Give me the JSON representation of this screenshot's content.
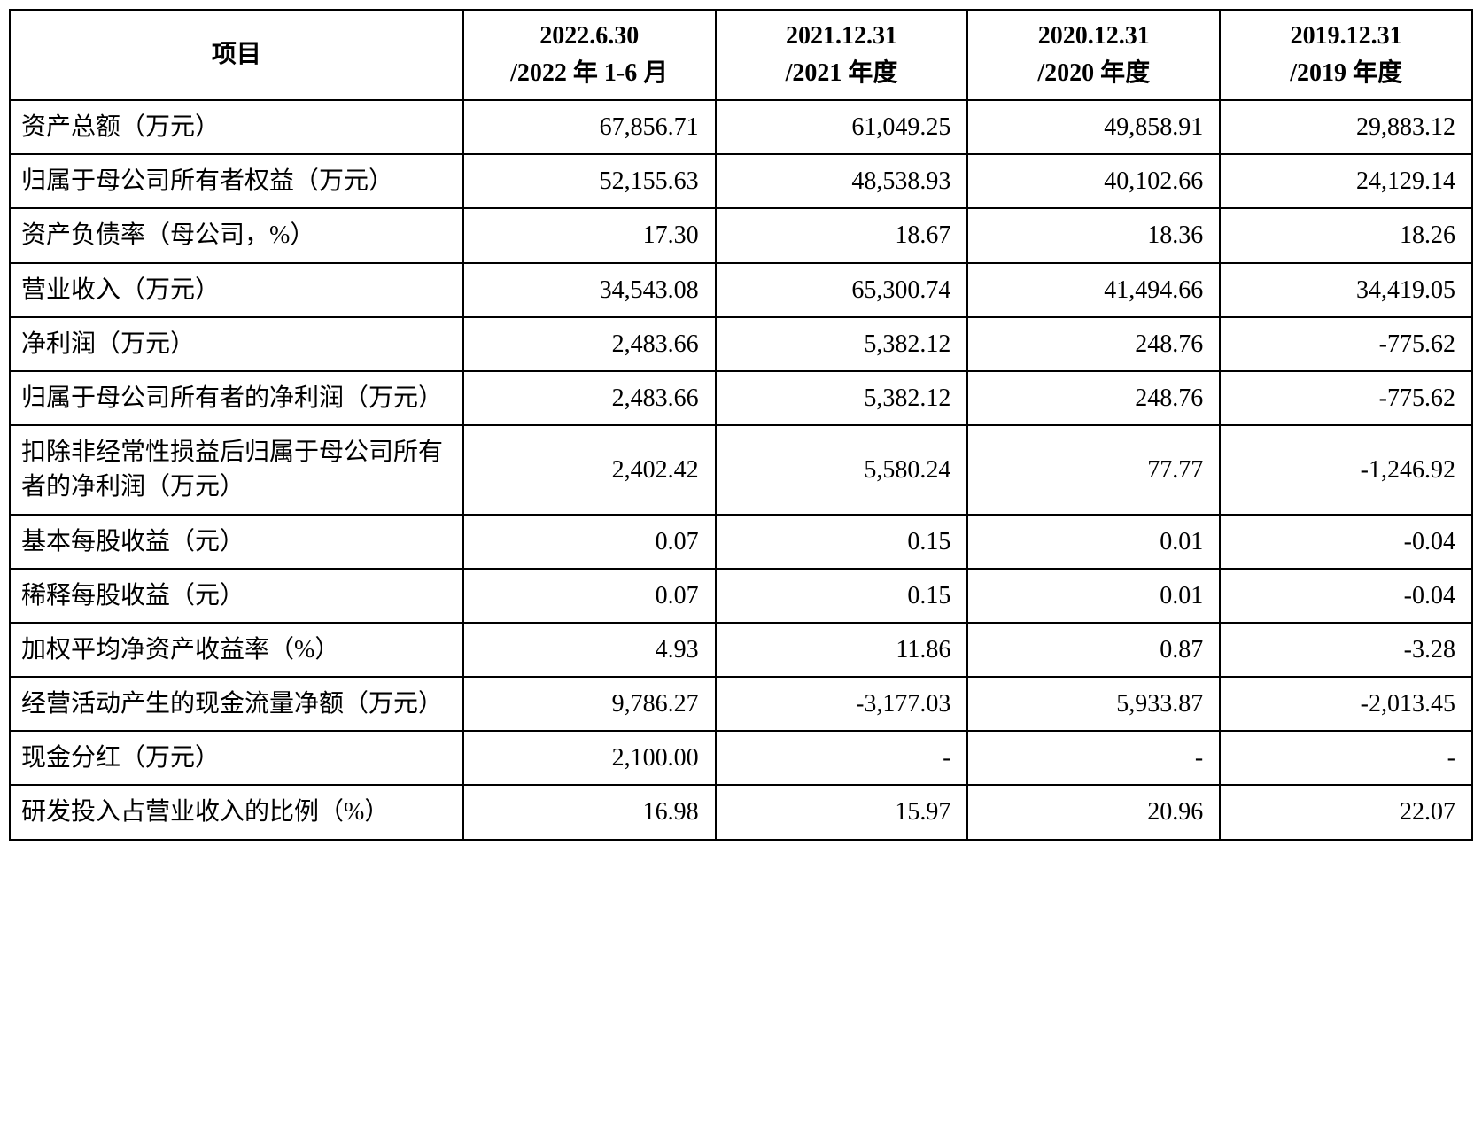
{
  "table": {
    "type": "table",
    "background_color": "#ffffff",
    "border_color": "#000000",
    "text_color": "#000000",
    "font_size": 28,
    "font_family": "SimSun",
    "columns": [
      {
        "key": "item",
        "header_line1": "项目",
        "header_line2": "",
        "align": "left",
        "width_pct": 31
      },
      {
        "key": "c2022",
        "header_line1": "2022.6.30",
        "header_line2": "/2022 年 1-6 月",
        "align": "right",
        "width_pct": 17.25
      },
      {
        "key": "c2021",
        "header_line1": "2021.12.31",
        "header_line2": "/2021 年度",
        "align": "right",
        "width_pct": 17.25
      },
      {
        "key": "c2020",
        "header_line1": "2020.12.31",
        "header_line2": "/2020 年度",
        "align": "right",
        "width_pct": 17.25
      },
      {
        "key": "c2019",
        "header_line1": "2019.12.31",
        "header_line2": "/2019 年度",
        "align": "right",
        "width_pct": 17.25
      }
    ],
    "rows": [
      {
        "item": "资产总额（万元）",
        "c2022": "67,856.71",
        "c2021": "61,049.25",
        "c2020": "49,858.91",
        "c2019": "29,883.12"
      },
      {
        "item": "归属于母公司所有者权益（万元）",
        "c2022": "52,155.63",
        "c2021": "48,538.93",
        "c2020": "40,102.66",
        "c2019": "24,129.14"
      },
      {
        "item": "资产负债率（母公司，%）",
        "c2022": "17.30",
        "c2021": "18.67",
        "c2020": "18.36",
        "c2019": "18.26"
      },
      {
        "item": "营业收入（万元）",
        "c2022": "34,543.08",
        "c2021": "65,300.74",
        "c2020": "41,494.66",
        "c2019": "34,419.05"
      },
      {
        "item": "净利润（万元）",
        "c2022": "2,483.66",
        "c2021": "5,382.12",
        "c2020": "248.76",
        "c2019": "-775.62"
      },
      {
        "item": "归属于母公司所有者的净利润（万元）",
        "c2022": "2,483.66",
        "c2021": "5,382.12",
        "c2020": "248.76",
        "c2019": "-775.62"
      },
      {
        "item": "扣除非经常性损益后归属于母公司所有者的净利润（万元）",
        "c2022": "2,402.42",
        "c2021": "5,580.24",
        "c2020": "77.77",
        "c2019": "-1,246.92"
      },
      {
        "item": "基本每股收益（元）",
        "c2022": "0.07",
        "c2021": "0.15",
        "c2020": "0.01",
        "c2019": "-0.04"
      },
      {
        "item": "稀释每股收益（元）",
        "c2022": "0.07",
        "c2021": "0.15",
        "c2020": "0.01",
        "c2019": "-0.04"
      },
      {
        "item": "加权平均净资产收益率（%）",
        "c2022": "4.93",
        "c2021": "11.86",
        "c2020": "0.87",
        "c2019": "-3.28"
      },
      {
        "item": "经营活动产生的现金流量净额（万元）",
        "c2022": "9,786.27",
        "c2021": "-3,177.03",
        "c2020": "5,933.87",
        "c2019": "-2,013.45"
      },
      {
        "item": "现金分红（万元）",
        "c2022": "2,100.00",
        "c2021": "-",
        "c2020": "-",
        "c2019": "-"
      },
      {
        "item": "研发投入占营业收入的比例（%）",
        "c2022": "16.98",
        "c2021": "15.97",
        "c2020": "20.96",
        "c2019": "22.07"
      }
    ]
  }
}
